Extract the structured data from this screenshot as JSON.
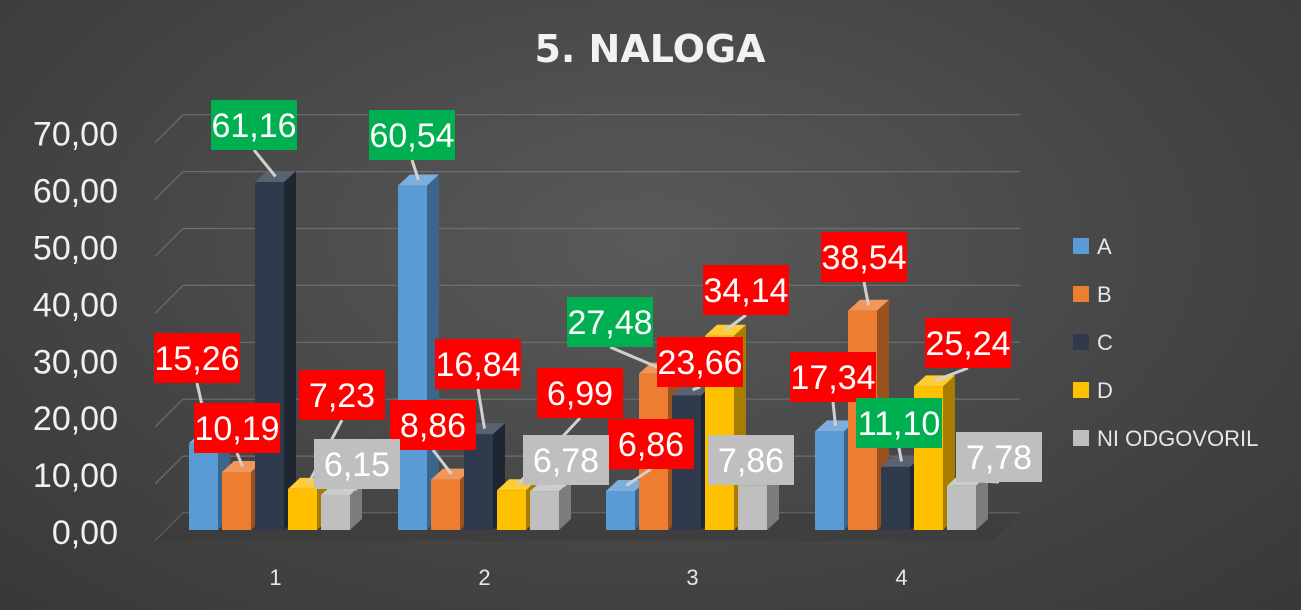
{
  "chart_data": {
    "type": "bar",
    "title": "5. NALOGA",
    "xlabel": "",
    "ylabel": "",
    "categories": [
      "1",
      "2",
      "3",
      "4"
    ],
    "ylim": [
      0,
      70
    ],
    "yticks": [
      "0,00",
      "10,00",
      "20,00",
      "30,00",
      "40,00",
      "50,00",
      "60,00",
      "70,00"
    ],
    "legend_position": "right",
    "three_d": true,
    "series": [
      {
        "name": "A",
        "color": "#5b9bd5",
        "values": [
          15.26,
          60.54,
          6.86,
          17.34
        ],
        "labels": [
          "15,26",
          "60,54",
          "6,86",
          "17,34"
        ],
        "label_colors": [
          "#ff0000",
          "#00b050",
          "#ff0000",
          "#ff0000"
        ]
      },
      {
        "name": "B",
        "color": "#ed7d31",
        "values": [
          10.19,
          8.86,
          27.48,
          38.54
        ],
        "labels": [
          "10,19",
          "8,86",
          "27,48",
          "38,54"
        ],
        "label_colors": [
          "#ff0000",
          "#ff0000",
          "#00b050",
          "#ff0000"
        ]
      },
      {
        "name": "C",
        "color": "#2f3b4c",
        "values": [
          61.16,
          16.84,
          23.66,
          11.1
        ],
        "labels": [
          "61,16",
          "16,84",
          "23,66",
          "11,10"
        ],
        "label_colors": [
          "#00b050",
          "#ff0000",
          "#ff0000",
          "#00b050"
        ]
      },
      {
        "name": "D",
        "color": "#ffc000",
        "values": [
          7.23,
          6.99,
          34.14,
          25.24
        ],
        "labels": [
          "7,23",
          "6,99",
          "34,14",
          "25,24"
        ],
        "label_colors": [
          "#ff0000",
          "#ff0000",
          "#ff0000",
          "#ff0000"
        ]
      },
      {
        "name": "NI ODGOVORIL",
        "color": "#bfbfbf",
        "values": [
          6.15,
          6.78,
          7.86,
          7.78
        ],
        "labels": [
          "6,15",
          "6,78",
          "7,86",
          "7,78"
        ],
        "label_colors": [
          "#bfbfbf",
          "#bfbfbf",
          "#bfbfbf",
          "#bfbfbf"
        ]
      }
    ]
  }
}
